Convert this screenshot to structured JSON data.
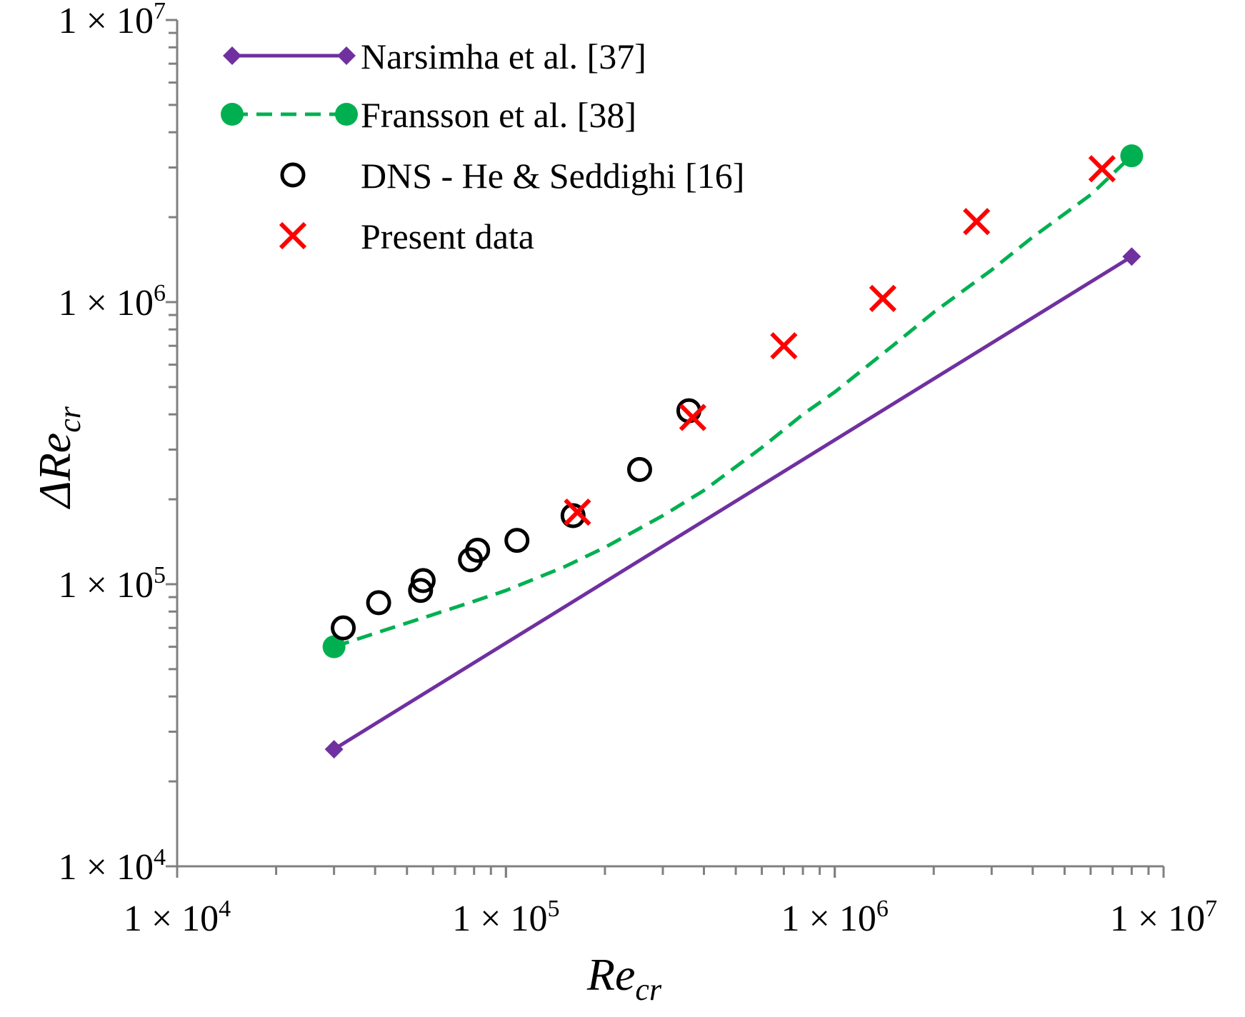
{
  "chart_data": {
    "type": "scatter",
    "title": "",
    "xlabel": {
      "main": "Re",
      "sub": "cr"
    },
    "ylabel": {
      "main": "ΔRe",
      "sub": "cr"
    },
    "xscale": "log",
    "yscale": "log",
    "xlim": [
      10000,
      10000000
    ],
    "ylim": [
      10000,
      10000000
    ],
    "grid": false,
    "legend_position": "top-left",
    "x_ticks": [
      {
        "value": 10000,
        "base": "1 × 10",
        "exp": "4"
      },
      {
        "value": 100000,
        "base": "1 × 10",
        "exp": "5"
      },
      {
        "value": 1000000,
        "base": "1 × 10",
        "exp": "6"
      },
      {
        "value": 10000000,
        "base": "1 × 10",
        "exp": "7"
      }
    ],
    "y_ticks": [
      {
        "value": 10000,
        "base": "1 × 10",
        "exp": "4"
      },
      {
        "value": 100000,
        "base": "1 × 10",
        "exp": "5"
      },
      {
        "value": 1000000,
        "base": "1 × 10",
        "exp": "6"
      },
      {
        "value": 10000000,
        "base": "1 × 10",
        "exp": "7"
      }
    ],
    "series": [
      {
        "name": "Narsimha et al. [37]",
        "style": "solid-line",
        "marker": "diamond",
        "color": "#7030A0",
        "points": [
          [
            30000,
            26000
          ],
          [
            8000000,
            1450000
          ]
        ],
        "curve": [
          [
            30000,
            26000
          ],
          [
            8000000,
            1450000
          ]
        ]
      },
      {
        "name": "Fransson et al. [38]",
        "style": "dashed-line",
        "marker": "filled-circle",
        "color": "#00B050",
        "points": [
          [
            30000,
            60000
          ],
          [
            8000000,
            3300000
          ]
        ],
        "curve": [
          [
            30000,
            60000
          ],
          [
            40000,
            67000
          ],
          [
            60000,
            78000
          ],
          [
            80000,
            87000
          ],
          [
            100000,
            95000
          ],
          [
            150000,
            115000
          ],
          [
            200000,
            135000
          ],
          [
            300000,
            175000
          ],
          [
            400000,
            215000
          ],
          [
            600000,
            305000
          ],
          [
            800000,
            400000
          ],
          [
            1000000,
            480000
          ],
          [
            1500000,
            700000
          ],
          [
            2000000,
            920000
          ],
          [
            3000000,
            1300000
          ],
          [
            4000000,
            1700000
          ],
          [
            6000000,
            2400000
          ],
          [
            8000000,
            3300000
          ]
        ]
      },
      {
        "name": "DNS - He & Seddighi [16]",
        "style": "markers",
        "marker": "open-circle",
        "color": "#000000",
        "points": [
          [
            32000,
            70000
          ],
          [
            41000,
            86000
          ],
          [
            55000,
            95000
          ],
          [
            56000,
            103000
          ],
          [
            78000,
            122000
          ],
          [
            82000,
            132000
          ],
          [
            108000,
            143000
          ],
          [
            160000,
            175000
          ],
          [
            255000,
            255000
          ],
          [
            360000,
            412000
          ]
        ]
      },
      {
        "name": "Present data",
        "style": "markers",
        "marker": "x",
        "color": "#FF0000",
        "points": [
          [
            165000,
            180000
          ],
          [
            370000,
            390000
          ],
          [
            700000,
            700000
          ],
          [
            1400000,
            1030000
          ],
          [
            2700000,
            1930000
          ],
          [
            6500000,
            2970000
          ]
        ]
      }
    ]
  }
}
